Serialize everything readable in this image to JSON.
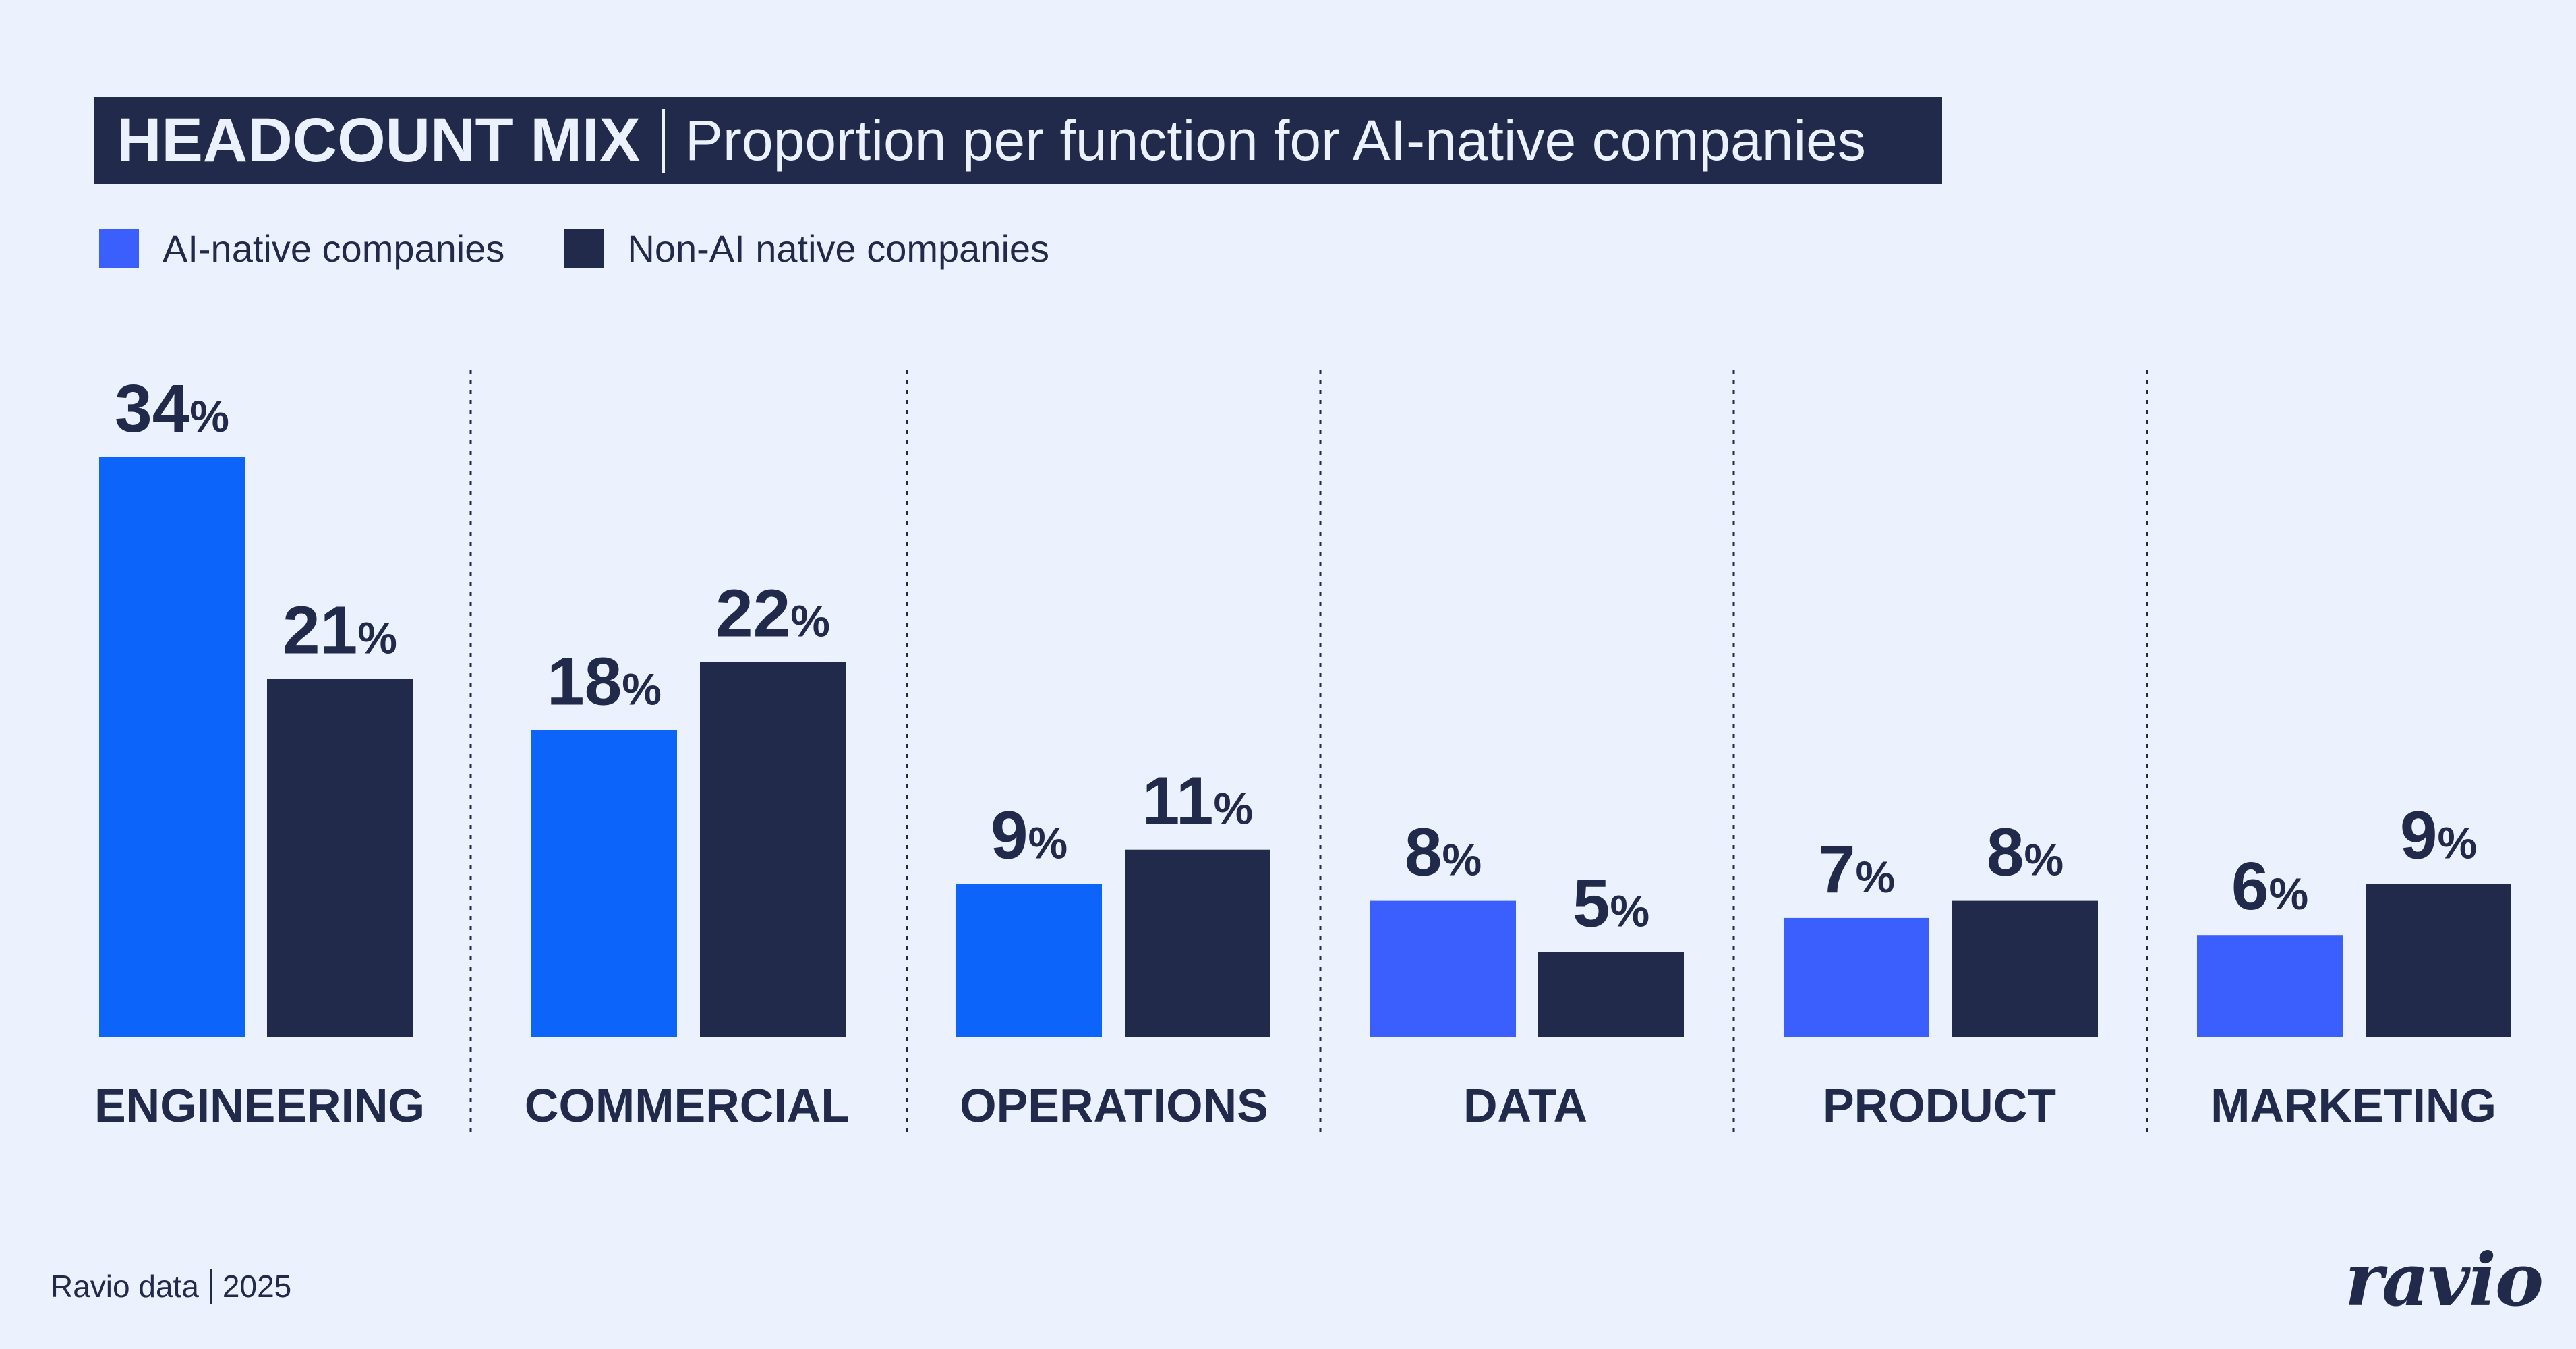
{
  "title": {
    "main": "HEADCOUNT MIX",
    "subtitle": "Proportion per function for AI-native companies"
  },
  "legend": {
    "items": [
      {
        "label": "AI-native companies",
        "color": "#3a5ffc"
      },
      {
        "label": "Non-AI native companies",
        "color": "#212a4b"
      }
    ]
  },
  "footer": {
    "source": "Ravio data",
    "year": "2025"
  },
  "logo": {
    "text": "ravio"
  },
  "chart_data": {
    "type": "bar",
    "title": "HEADCOUNT MIX",
    "subtitle": "Proportion per function for AI-native companies",
    "categories": [
      "ENGINEERING",
      "COMMERCIAL",
      "OPERATIONS",
      "DATA",
      "PRODUCT",
      "MARKETING"
    ],
    "series": [
      {
        "name": "AI-native companies",
        "values": [
          34,
          18,
          9,
          8,
          7,
          6
        ],
        "colors": [
          "#0c64fa",
          "#0c64fa",
          "#0c64fa",
          "#3a5ffc",
          "#3a5ffc",
          "#3a5ffc"
        ]
      },
      {
        "name": "Non-AI native companies",
        "values": [
          21,
          22,
          11,
          5,
          8,
          9
        ],
        "color": "#212a4b"
      }
    ],
    "value_suffix": "%",
    "ylim": [
      0,
      34
    ],
    "grid": false,
    "legend_position": "top-left"
  }
}
